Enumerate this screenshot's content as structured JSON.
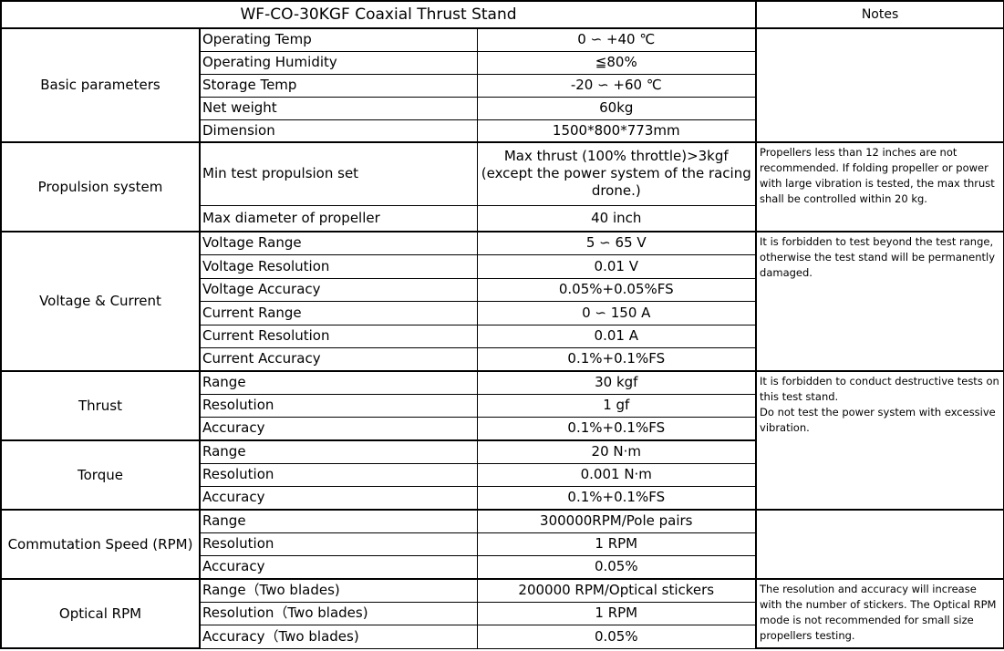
{
  "header": {
    "title": "WF-CO-30KGF Coaxial Thrust Stand",
    "notes_label": "Notes"
  },
  "groups": [
    {
      "name": "Basic parameters",
      "note": "",
      "rows": [
        {
          "param": "Operating Temp",
          "value": "0 ∽ +40 ℃"
        },
        {
          "param": "Operating Humidity",
          "value": "≦80%"
        },
        {
          "param": "Storage Temp",
          "value": "-20 ∽ +60 ℃"
        },
        {
          "param": "Net weight",
          "value": "60kg"
        },
        {
          "param": "Dimension",
          "value": "1500*800*773mm"
        }
      ]
    },
    {
      "name": "Propulsion system",
      "note": "Propellers less than 12 inches are not recommended. If folding propeller or power with large vibration is tested, the max thrust shall be controlled within 20 kg.",
      "rows": [
        {
          "param": "Min test propulsion set",
          "value": "Max thrust (100% throttle)>3kgf (except the power system of the racing drone.)"
        },
        {
          "param": "Max diameter of propeller",
          "value": "40 inch"
        }
      ]
    },
    {
      "name": "Voltage & Current",
      "note": "It is forbidden to test beyond the test range, otherwise the test stand will be permanently damaged.",
      "rows": [
        {
          "param": "Voltage Range",
          "value": "5 ∽ 65 V"
        },
        {
          "param": "Voltage Resolution",
          "value": "0.01 V"
        },
        {
          "param": "Voltage Accuracy",
          "value": "0.05%+0.05%FS"
        },
        {
          "param": "Current Range",
          "value": "0 ∽ 150 A"
        },
        {
          "param": "Current Resolution",
          "value": "0.01 A"
        },
        {
          "param": "Current Accuracy",
          "value": "0.1%+0.1%FS"
        }
      ]
    },
    {
      "name": "Thrust",
      "note": "It is forbidden to conduct destructive tests on this test stand.\nDo not test the power system with excessive vibration.",
      "rows": [
        {
          "param": "Range",
          "value": "30 kgf"
        },
        {
          "param": "Resolution",
          "value": "1 gf"
        },
        {
          "param": "Accuracy",
          "value": "0.1%+0.1%FS"
        }
      ]
    },
    {
      "name": "Torque",
      "rows": [
        {
          "param": "Range",
          "value": "20 N·m"
        },
        {
          "param": "Resolution",
          "value": "0.001 N·m"
        },
        {
          "param": "Accuracy",
          "value": "0.1%+0.1%FS"
        }
      ]
    },
    {
      "name": "Commutation Speed (RPM)",
      "note": "",
      "rows": [
        {
          "param": "Range",
          "value": "300000RPM/Pole pairs"
        },
        {
          "param": "Resolution",
          "value": "1 RPM"
        },
        {
          "param": "Accuracy",
          "value": "0.05%"
        }
      ]
    },
    {
      "name": "Optical RPM",
      "note": "The resolution and accuracy will increase with the number of stickers. The Optical RPM mode is not recommended for small size propellers testing.",
      "rows": [
        {
          "param": "Range（Two blades)",
          "value": "200000 RPM/Optical stickers"
        },
        {
          "param": "Resolution（Two blades)",
          "value": "1 RPM"
        },
        {
          "param": "Accuracy（Two blades)",
          "value": "0.05%"
        }
      ]
    }
  ]
}
